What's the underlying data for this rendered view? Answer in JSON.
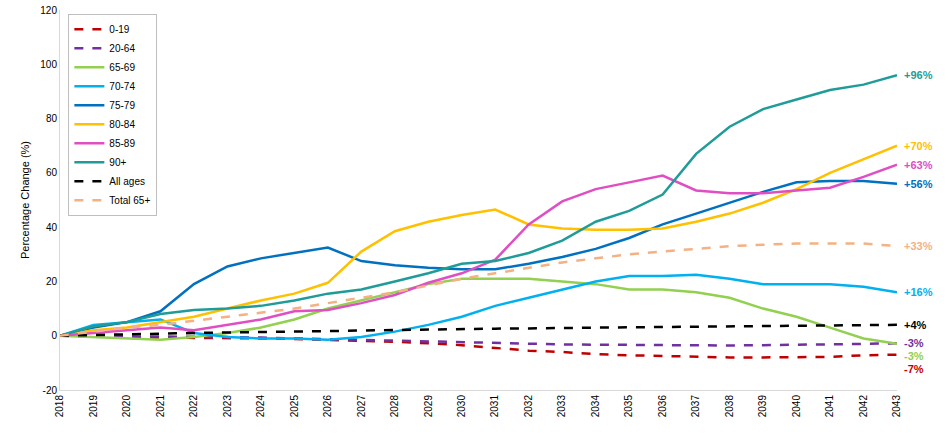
{
  "chart_data": {
    "type": "line",
    "y_label": "Percentage Change (%)",
    "x": [
      2018,
      2019,
      2020,
      2021,
      2022,
      2023,
      2024,
      2025,
      2026,
      2027,
      2028,
      2029,
      2030,
      2031,
      2032,
      2033,
      2034,
      2035,
      2036,
      2037,
      2038,
      2039,
      2040,
      2041,
      2042,
      2043
    ],
    "xlim": [
      2018,
      2043
    ],
    "xticks": [
      2018,
      2019,
      2020,
      2021,
      2022,
      2023,
      2024,
      2025,
      2026,
      2027,
      2028,
      2029,
      2030,
      2031,
      2032,
      2033,
      2034,
      2035,
      2036,
      2037,
      2038,
      2039,
      2040,
      2041,
      2042,
      2043
    ],
    "ylim": [
      -20,
      120
    ],
    "yticks": [
      -20,
      0,
      20,
      40,
      60,
      80,
      100,
      120
    ],
    "grid": false,
    "legend": "top-left",
    "series": [
      {
        "name": "0-19",
        "color": "#c00000",
        "line_style": "dashed",
        "end_label": "-7%",
        "values": [
          0,
          -0.3,
          -0.5,
          -0.7,
          -0.8,
          -0.8,
          -1,
          -1.2,
          -1.5,
          -1.8,
          -2.2,
          -2.8,
          -3.5,
          -4.5,
          -5.5,
          -6,
          -6.8,
          -7.2,
          -7.5,
          -7.8,
          -8,
          -8,
          -8,
          -7.8,
          -7.2,
          -7
        ]
      },
      {
        "name": "20-64",
        "color": "#7030a0",
        "line_style": "dashed",
        "end_label": "-3%",
        "values": [
          0,
          -0.2,
          -0.3,
          -0.3,
          -0.3,
          -0.5,
          -0.7,
          -1,
          -1.3,
          -1.6,
          -1.9,
          -2.2,
          -2.5,
          -2.8,
          -3,
          -3.2,
          -3.3,
          -3.4,
          -3.5,
          -3.6,
          -3.6,
          -3.5,
          -3.4,
          -3.3,
          -3,
          -2.8
        ]
      },
      {
        "name": "65-69",
        "color": "#92d050",
        "line_style": "solid",
        "end_label": "-3%",
        "values": [
          0,
          -0.5,
          -1,
          -1.5,
          -0.5,
          1,
          3,
          6,
          10,
          13,
          16,
          19,
          21,
          21,
          21,
          20,
          19,
          17,
          17,
          16,
          14,
          10,
          7,
          3,
          -1,
          -3
        ]
      },
      {
        "name": "70-74",
        "color": "#00b0f0",
        "line_style": "solid",
        "end_label": "+16%",
        "values": [
          0,
          4,
          5,
          6,
          1,
          -0.5,
          -1,
          -1,
          -1.5,
          -0.5,
          1.5,
          4,
          7,
          11,
          14,
          17,
          20,
          22,
          22,
          22.5,
          21,
          19,
          19,
          19,
          18,
          16
        ]
      },
      {
        "name": "75-79",
        "color": "#0070c0",
        "line_style": "solid",
        "end_label": "+56%",
        "values": [
          0,
          3,
          5,
          9,
          19,
          25.5,
          28.5,
          30.5,
          32.5,
          27.5,
          26,
          25,
          24.5,
          24.5,
          26.5,
          29,
          32,
          36,
          41,
          45,
          49,
          53,
          56.5,
          57,
          57,
          56
        ]
      },
      {
        "name": "80-84",
        "color": "#ffc000",
        "line_style": "solid",
        "end_label": "+70%",
        "values": [
          0,
          2,
          3,
          5,
          7,
          10,
          13,
          15.5,
          19.5,
          31,
          38.5,
          42,
          44.5,
          46.5,
          41,
          39.5,
          39,
          39,
          39.5,
          42,
          45,
          49,
          54,
          60,
          65,
          70
        ]
      },
      {
        "name": "85-89",
        "color": "#e04ec4",
        "line_style": "solid",
        "end_label": "+63%",
        "values": [
          0,
          1,
          2,
          3,
          2,
          4,
          6,
          9,
          9.5,
          12,
          15,
          19.5,
          23,
          28,
          41,
          49.5,
          54,
          56.5,
          59,
          53.5,
          52.5,
          52.5,
          53.5,
          54.5,
          58.5,
          63
        ]
      },
      {
        "name": "90+",
        "color": "#1f9c98",
        "line_style": "solid",
        "end_label": "+96%",
        "values": [
          0,
          3.5,
          5,
          8,
          9.5,
          10,
          11,
          13,
          15.5,
          17,
          20,
          23,
          26.5,
          27.5,
          30.5,
          35,
          42,
          46,
          52,
          67,
          77,
          83.5,
          87,
          90.5,
          92.5,
          96
        ]
      },
      {
        "name": "All ages",
        "color": "#000000",
        "line_style": "dashed",
        "end_label": "+4%",
        "values": [
          0,
          0.3,
          0.6,
          0.8,
          1,
          1.2,
          1.4,
          1.6,
          1.8,
          2,
          2.2,
          2.4,
          2.5,
          2.6,
          2.7,
          2.9,
          3,
          3.1,
          3.2,
          3.3,
          3.4,
          3.5,
          3.6,
          3.7,
          3.9,
          4
        ]
      },
      {
        "name": "Total 65+",
        "color": "#f4b183",
        "line_style": "dashed",
        "end_label": "+33%",
        "values": [
          0,
          1.5,
          3,
          4,
          5.5,
          7,
          8.5,
          10,
          12,
          14,
          16,
          18.5,
          21,
          23,
          25,
          27,
          28.5,
          30,
          31,
          32,
          33,
          33.5,
          34,
          34,
          34,
          33
        ]
      }
    ]
  }
}
